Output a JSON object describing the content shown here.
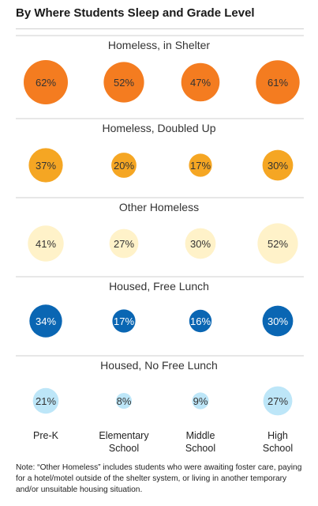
{
  "title": "By Where Students Sleep and Grade Level",
  "chart_data": {
    "type": "bubble-grid",
    "title": "By Where Students Sleep and Grade Level",
    "categories": [
      "Pre-K",
      "Elementary School",
      "Middle School",
      "High School"
    ],
    "category_lines": [
      [
        "Pre-K"
      ],
      [
        "Elementary",
        "School"
      ],
      [
        "Middle",
        "School"
      ],
      [
        "High",
        "School"
      ]
    ],
    "unit": "%",
    "series": [
      {
        "name": "Homeless, in Shelter",
        "values": [
          62,
          52,
          47,
          61
        ],
        "color": "#F47C20",
        "text_color": "#333333"
      },
      {
        "name": "Homeless, Doubled Up",
        "values": [
          37,
          20,
          17,
          30
        ],
        "color": "#F5A623",
        "text_color": "#333333"
      },
      {
        "name": "Other Homeless",
        "values": [
          41,
          27,
          30,
          52
        ],
        "color": "#FFF2C9",
        "text_color": "#333333"
      },
      {
        "name": "Housed, Free Lunch",
        "values": [
          34,
          17,
          16,
          30
        ],
        "color": "#0A66B3",
        "text_color": "#ffffff"
      },
      {
        "name": "Housed, No Free Lunch",
        "values": [
          21,
          8,
          9,
          27
        ],
        "color": "#BDE6F8",
        "text_color": "#333333"
      }
    ]
  },
  "note": "Note: “Other Homeless” includes students who were awaiting foster care, paying for a hotel/motel outside of the shelter system, or living in another temporary and/or unsuitable housing situation."
}
